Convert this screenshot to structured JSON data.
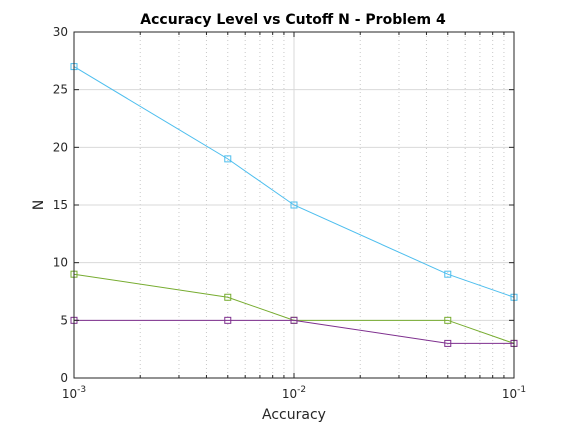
{
  "chart_data": {
    "type": "line",
    "title": "Accuracy Level vs Cutoff N - Problem 4",
    "xlabel": "Accuracy",
    "ylabel": "N",
    "xscale": "log",
    "xlim": [
      0.001,
      0.1
    ],
    "ylim": [
      0,
      30
    ],
    "yticks": [
      0,
      5,
      10,
      15,
      20,
      25,
      30
    ],
    "xticks": [
      {
        "value": 0.001,
        "base": "10",
        "exp": "-3"
      },
      {
        "value": 0.01,
        "base": "10",
        "exp": "-2"
      },
      {
        "value": 0.1,
        "base": "10",
        "exp": "-1"
      }
    ],
    "grid": true,
    "legend": "none",
    "x": [
      0.001,
      0.005,
      0.01,
      0.05,
      0.1
    ],
    "series": [
      {
        "values": [
          27,
          19,
          15,
          9,
          7
        ],
        "color": "#4dbeee",
        "marker": "square"
      },
      {
        "values": [
          9,
          7,
          5,
          5,
          3
        ],
        "color": "#77ac30",
        "marker": "square"
      },
      {
        "values": [
          5,
          5,
          5,
          3,
          3
        ],
        "color": "#7e2f8e",
        "marker": "square"
      }
    ]
  }
}
